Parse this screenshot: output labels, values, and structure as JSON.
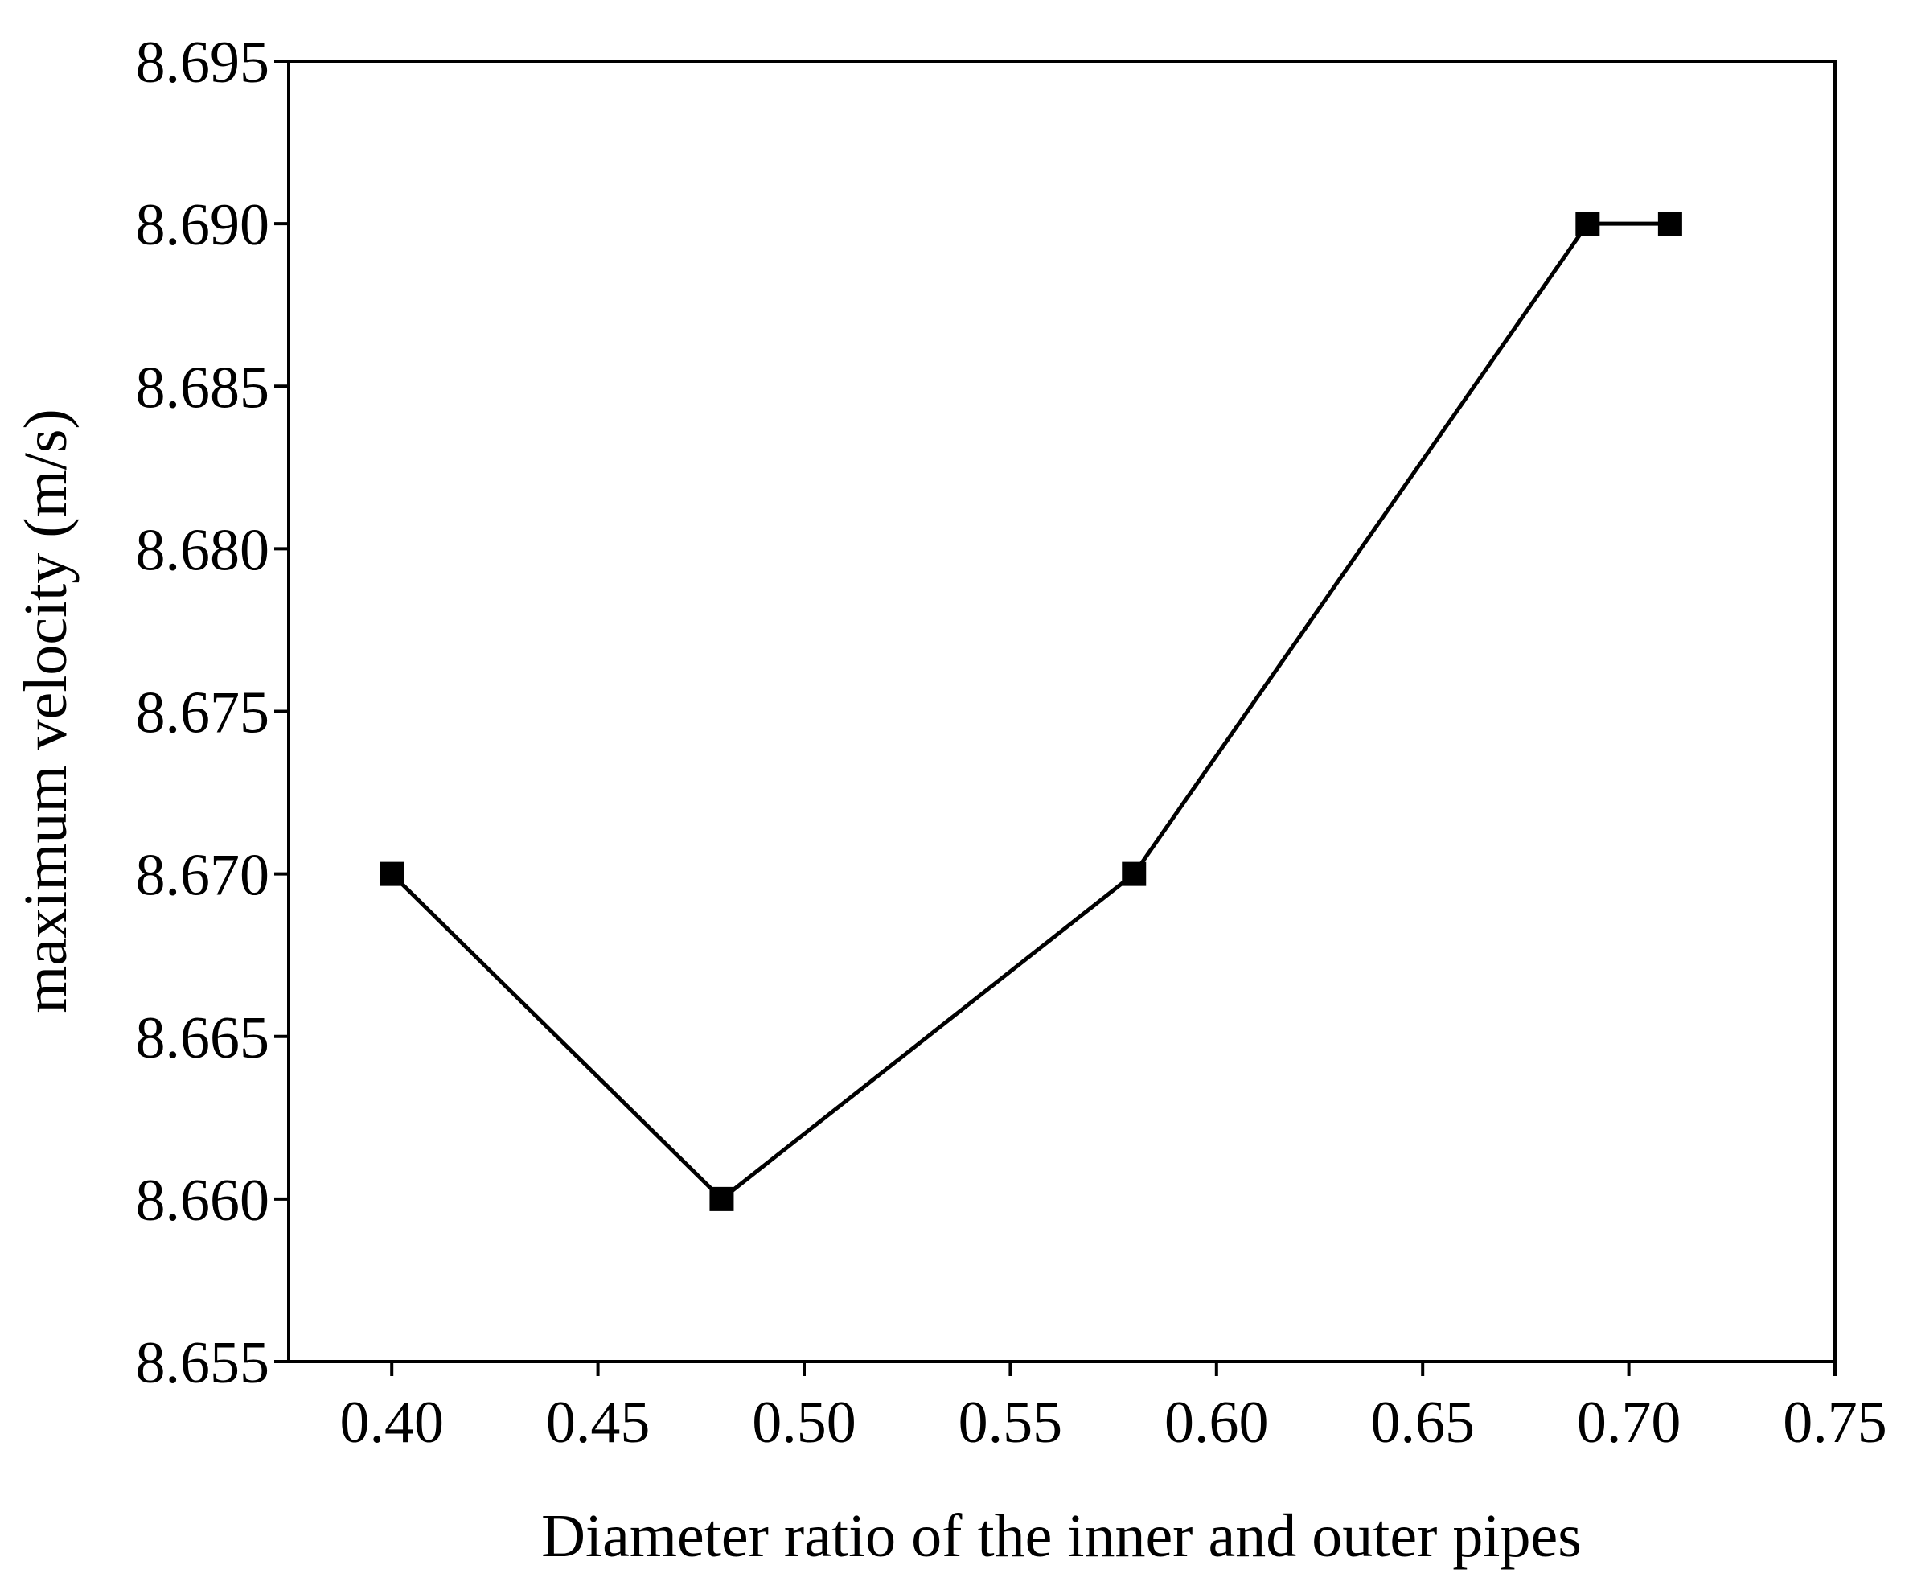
{
  "chart_data": {
    "type": "line",
    "x_label": "Diameter ratio of the inner and outer pipes",
    "y_label": "maximum velocity (m/s)",
    "x": [
      0.4,
      0.48,
      0.58,
      0.69,
      0.71
    ],
    "series": [
      {
        "color": "#000000",
        "values": [
          8.67,
          8.66,
          8.67,
          8.69,
          8.69
        ]
      }
    ],
    "xlim": [
      0.375,
      0.75
    ],
    "ylim": [
      8.655,
      8.695
    ],
    "xticks": [
      {
        "value": 0.4,
        "label": "0.40"
      },
      {
        "value": 0.45,
        "label": "0.45"
      },
      {
        "value": 0.5,
        "label": "0.50"
      },
      {
        "value": 0.55,
        "label": "0.55"
      },
      {
        "value": 0.6,
        "label": "0.60"
      },
      {
        "value": 0.65,
        "label": "0.65"
      },
      {
        "value": 0.7,
        "label": "0.70"
      },
      {
        "value": 0.75,
        "label": "0.75"
      }
    ],
    "yticks": [
      8.655,
      {
        "value": 8.66,
        "label": "8.660"
      },
      8.665,
      {
        "value": 8.67,
        "label": "8.670"
      },
      8.675,
      {
        "value": 8.68,
        "label": "8.680"
      },
      8.685,
      {
        "value": 8.69,
        "label": "8.690"
      },
      8.695
    ],
    "marker": "square"
  }
}
